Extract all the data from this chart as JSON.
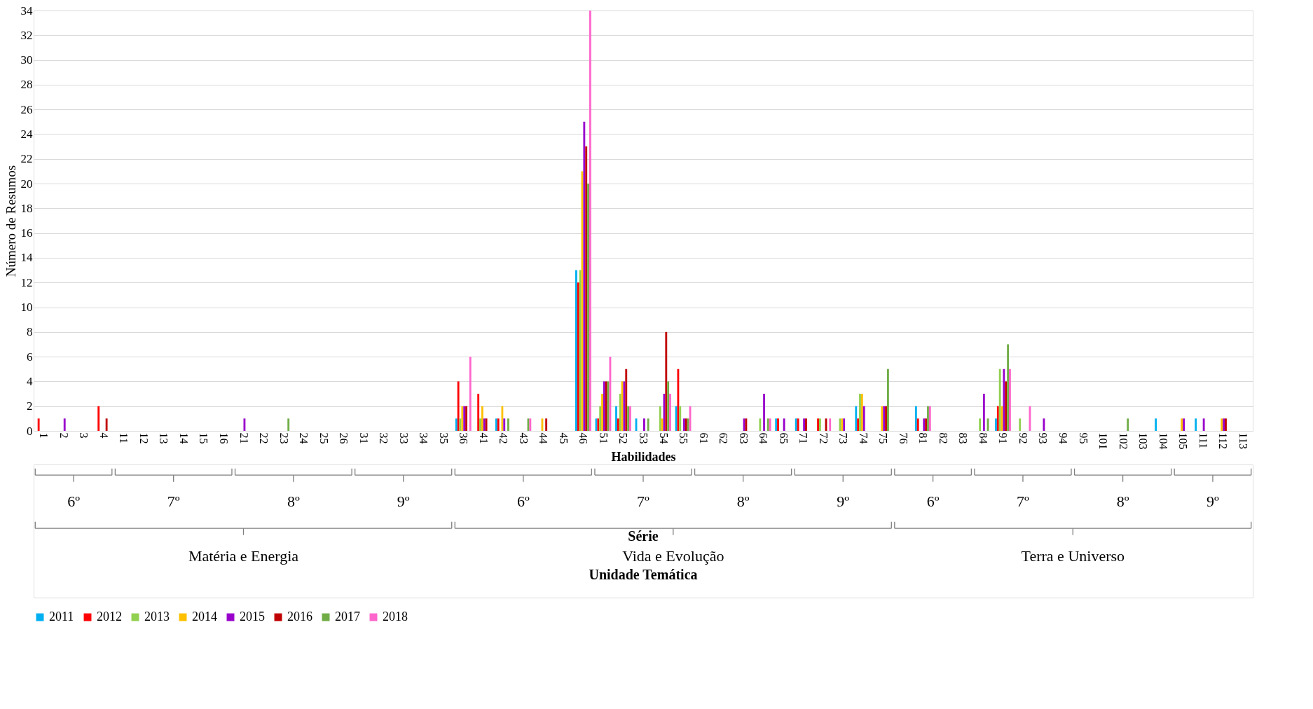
{
  "chart_data": {
    "type": "bar",
    "xlabel": "Habilidades",
    "ylabel": "Número de Resumos",
    "categories": [
      "1",
      "2",
      "3",
      "4",
      "11",
      "12",
      "13",
      "14",
      "15",
      "16",
      "21",
      "22",
      "23",
      "24",
      "25",
      "26",
      "31",
      "32",
      "33",
      "34",
      "35",
      "36",
      "41",
      "42",
      "43",
      "44",
      "45",
      "46",
      "51",
      "52",
      "53",
      "54",
      "55",
      "61",
      "62",
      "63",
      "64",
      "65",
      "71",
      "72",
      "73",
      "74",
      "75",
      "76",
      "81",
      "82",
      "83",
      "84",
      "91",
      "92",
      "93",
      "94",
      "95",
      "101",
      "102",
      "103",
      "104",
      "105",
      "111",
      "112",
      "113"
    ],
    "series": [
      {
        "name": "2011",
        "color": "#00b0f0",
        "values": [
          0,
          0,
          0,
          0,
          0,
          0,
          0,
          0,
          0,
          0,
          0,
          0,
          0,
          0,
          0,
          0,
          0,
          0,
          0,
          0,
          0,
          1,
          0,
          1,
          0,
          0,
          0,
          13,
          1,
          2,
          1,
          0,
          2,
          0,
          0,
          0,
          0,
          1,
          1,
          0,
          0,
          2,
          0,
          0,
          2,
          0,
          0,
          0,
          1,
          0,
          0,
          0,
          0,
          0,
          0,
          0,
          1,
          0,
          1,
          0,
          0
        ]
      },
      {
        "name": "2012",
        "color": "#ff0000",
        "values": [
          1,
          0,
          0,
          2,
          0,
          0,
          0,
          0,
          0,
          0,
          0,
          0,
          0,
          0,
          0,
          0,
          0,
          0,
          0,
          0,
          0,
          4,
          3,
          1,
          0,
          0,
          0,
          12,
          1,
          1,
          0,
          0,
          5,
          0,
          0,
          0,
          0,
          1,
          1,
          1,
          0,
          1,
          0,
          0,
          1,
          0,
          0,
          0,
          2,
          0,
          0,
          0,
          0,
          0,
          0,
          0,
          0,
          0,
          0,
          0,
          0
        ]
      },
      {
        "name": "2013",
        "color": "#92d050",
        "values": [
          0,
          0,
          0,
          0,
          0,
          0,
          0,
          0,
          0,
          0,
          0,
          0,
          0,
          0,
          0,
          0,
          0,
          0,
          0,
          0,
          0,
          1,
          1,
          0,
          0,
          0,
          0,
          13,
          2,
          3,
          0,
          2,
          2,
          0,
          0,
          0,
          1,
          0,
          0,
          1,
          1,
          3,
          0,
          0,
          0,
          0,
          0,
          1,
          5,
          1,
          0,
          0,
          0,
          0,
          0,
          0,
          0,
          0,
          0,
          0,
          0
        ]
      },
      {
        "name": "2014",
        "color": "#ffc000",
        "values": [
          0,
          0,
          0,
          0,
          0,
          0,
          0,
          0,
          0,
          0,
          0,
          0,
          0,
          0,
          0,
          0,
          0,
          0,
          0,
          0,
          0,
          2,
          2,
          2,
          0,
          1,
          0,
          21,
          3,
          4,
          0,
          1,
          0,
          0,
          0,
          0,
          0,
          0,
          0,
          0,
          1,
          3,
          2,
          0,
          0,
          0,
          0,
          0,
          2,
          0,
          0,
          0,
          0,
          0,
          0,
          0,
          0,
          1,
          0,
          1,
          0
        ]
      },
      {
        "name": "2015",
        "color": "#9900cc",
        "values": [
          0,
          1,
          0,
          0,
          0,
          0,
          0,
          0,
          0,
          0,
          1,
          0,
          0,
          0,
          0,
          0,
          0,
          0,
          0,
          0,
          0,
          2,
          1,
          1,
          0,
          0,
          0,
          25,
          4,
          4,
          1,
          3,
          1,
          0,
          0,
          1,
          3,
          1,
          1,
          0,
          1,
          2,
          2,
          0,
          1,
          0,
          0,
          3,
          5,
          0,
          1,
          0,
          0,
          0,
          0,
          0,
          0,
          1,
          1,
          1,
          0
        ]
      },
      {
        "name": "2016",
        "color": "#c00000",
        "values": [
          0,
          0,
          0,
          1,
          0,
          0,
          0,
          0,
          0,
          0,
          0,
          0,
          0,
          0,
          0,
          0,
          0,
          0,
          0,
          0,
          0,
          2,
          1,
          0,
          0,
          1,
          0,
          23,
          4,
          5,
          0,
          8,
          1,
          0,
          0,
          1,
          0,
          0,
          1,
          1,
          0,
          0,
          2,
          0,
          1,
          0,
          0,
          0,
          4,
          0,
          0,
          0,
          0,
          0,
          0,
          0,
          0,
          0,
          0,
          1,
          0
        ]
      },
      {
        "name": "2017",
        "color": "#70ad47",
        "values": [
          0,
          0,
          0,
          0,
          0,
          0,
          0,
          0,
          0,
          0,
          0,
          0,
          1,
          0,
          0,
          0,
          0,
          0,
          0,
          0,
          0,
          0,
          0,
          1,
          1,
          0,
          0,
          20,
          4,
          2,
          1,
          4,
          1,
          0,
          0,
          0,
          1,
          0,
          0,
          0,
          0,
          0,
          5,
          0,
          2,
          0,
          0,
          1,
          7,
          0,
          0,
          0,
          0,
          0,
          1,
          0,
          0,
          0,
          0,
          0,
          0
        ]
      },
      {
        "name": "2018",
        "color": "#ff66cc",
        "values": [
          0,
          0,
          0,
          0,
          0,
          0,
          0,
          0,
          0,
          0,
          0,
          0,
          0,
          0,
          0,
          0,
          0,
          0,
          0,
          0,
          0,
          6,
          0,
          0,
          1,
          0,
          0,
          34,
          6,
          2,
          0,
          3,
          2,
          0,
          0,
          0,
          1,
          0,
          0,
          1,
          0,
          0,
          0,
          0,
          2,
          0,
          0,
          0,
          5,
          2,
          0,
          0,
          0,
          0,
          0,
          0,
          0,
          0,
          0,
          0,
          0
        ]
      }
    ],
    "ylim": [
      0,
      34
    ],
    "yticks": [
      0,
      2,
      4,
      6,
      8,
      10,
      12,
      14,
      16,
      18,
      20,
      22,
      24,
      26,
      28,
      30,
      32,
      34
    ],
    "grid": "y",
    "legend": "bottom",
    "annotations": [
      "6º",
      "7º",
      "8º",
      "9º",
      "6º",
      "7º",
      "8º",
      "9º",
      "6º",
      "7º",
      "8º",
      "9º",
      "Série",
      "Matéria e Energia",
      "Vida e Evolução",
      "Terra e Universo",
      "Unidade Temática"
    ]
  }
}
